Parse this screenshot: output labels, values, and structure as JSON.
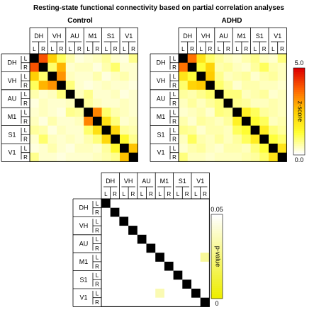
{
  "title": "Resting-state functional connectivity based on partial correlation analyses",
  "panels": {
    "control_title": "Control",
    "adhd_title": "ADHD"
  },
  "regions": [
    "DH",
    "VH",
    "AU",
    "M1",
    "S1",
    "V1"
  ],
  "hemispheres": [
    "L",
    "R"
  ],
  "colorbars": {
    "zscore": {
      "label": "z-score",
      "min_label": "0.0",
      "max_label": "5.0",
      "colors": [
        "#ffffff",
        "#ffff33",
        "#ffcc00",
        "#ff6600",
        "#dd0000"
      ]
    },
    "pvalue": {
      "label": "p-value",
      "min_label": "0",
      "max_label": "0.05",
      "colors": [
        "#eeee00",
        "#ffffff"
      ]
    }
  },
  "chart_data": [
    {
      "type": "heatmap",
      "title": "Control",
      "value_label": "z-score",
      "range": [
        0,
        5
      ],
      "labels": [
        "DH-L",
        "DH-R",
        "VH-L",
        "VH-R",
        "AU-L",
        "AU-R",
        "M1-L",
        "M1-R",
        "S1-L",
        "S1-R",
        "V1-L",
        "V1-R"
      ],
      "diagonal": "black",
      "matrix": [
        [
          null,
          4.0,
          2.4,
          1.0,
          0.5,
          0.2,
          0.3,
          0.4,
          0.6,
          0.3,
          0.2,
          0.7
        ],
        [
          4.0,
          null,
          0.9,
          2.8,
          0.3,
          0.4,
          0.4,
          0.2,
          0.5,
          0.9,
          0.3,
          0.3
        ],
        [
          2.4,
          0.9,
          null,
          3.2,
          0.4,
          0.3,
          0.3,
          0.5,
          0.2,
          0.4,
          0.5,
          0.3
        ],
        [
          1.0,
          2.8,
          3.2,
          null,
          0.8,
          0.3,
          0.2,
          0.3,
          0.4,
          0.3,
          0.3,
          0.2
        ],
        [
          0.5,
          0.3,
          0.4,
          0.8,
          null,
          0.4,
          0.7,
          0.3,
          0.3,
          0.4,
          0.2,
          0.3
        ],
        [
          0.2,
          0.4,
          0.3,
          0.3,
          0.4,
          null,
          0.6,
          0.4,
          0.3,
          0.3,
          0.4,
          0.3
        ],
        [
          0.3,
          0.4,
          0.3,
          0.2,
          0.7,
          0.6,
          null,
          3.4,
          0.9,
          0.5,
          0.4,
          0.3
        ],
        [
          0.4,
          0.2,
          0.5,
          0.3,
          0.3,
          0.4,
          3.4,
          null,
          2.0,
          0.8,
          0.3,
          0.4
        ],
        [
          0.6,
          0.5,
          0.2,
          0.4,
          0.3,
          0.3,
          0.9,
          2.0,
          null,
          2.2,
          0.6,
          0.5
        ],
        [
          0.3,
          0.9,
          0.4,
          0.3,
          0.4,
          0.3,
          0.5,
          0.8,
          2.2,
          null,
          1.4,
          0.7
        ],
        [
          0.2,
          0.3,
          0.5,
          0.3,
          0.2,
          0.4,
          0.4,
          0.3,
          0.6,
          1.4,
          null,
          2.6
        ],
        [
          0.7,
          0.3,
          0.3,
          0.2,
          0.3,
          0.3,
          0.3,
          0.4,
          0.5,
          0.7,
          2.6,
          null
        ]
      ]
    },
    {
      "type": "heatmap",
      "title": "ADHD",
      "value_label": "z-score",
      "range": [
        0,
        5
      ],
      "labels": [
        "DH-L",
        "DH-R",
        "VH-L",
        "VH-R",
        "AU-L",
        "AU-R",
        "M1-L",
        "M1-R",
        "S1-L",
        "S1-R",
        "V1-L",
        "V1-R"
      ],
      "diagonal": "black",
      "matrix": [
        [
          null,
          3.6,
          1.9,
          0.9,
          0.6,
          0.4,
          0.3,
          0.5,
          0.7,
          0.4,
          0.3,
          0.8
        ],
        [
          3.6,
          null,
          1.2,
          2.3,
          0.5,
          0.6,
          0.4,
          0.3,
          0.6,
          1.0,
          0.5,
          0.4
        ],
        [
          1.9,
          1.2,
          null,
          2.5,
          0.7,
          0.4,
          0.5,
          0.6,
          0.3,
          0.5,
          0.6,
          0.4
        ],
        [
          0.9,
          2.3,
          2.5,
          null,
          0.9,
          0.6,
          0.3,
          0.5,
          0.5,
          0.4,
          0.4,
          0.3
        ],
        [
          0.6,
          0.5,
          0.7,
          0.9,
          null,
          0.8,
          0.8,
          0.4,
          0.5,
          0.6,
          0.3,
          0.4
        ],
        [
          0.4,
          0.6,
          0.4,
          0.6,
          0.8,
          null,
          0.7,
          0.6,
          0.4,
          0.4,
          0.5,
          0.4
        ],
        [
          0.3,
          0.4,
          0.5,
          0.3,
          0.8,
          0.7,
          null,
          1.6,
          1.0,
          0.6,
          0.5,
          0.4
        ],
        [
          0.5,
          0.3,
          0.6,
          0.5,
          0.4,
          0.6,
          1.6,
          null,
          1.3,
          1.0,
          0.4,
          0.5
        ],
        [
          0.7,
          0.6,
          0.3,
          0.5,
          0.5,
          0.4,
          1.0,
          1.3,
          null,
          1.7,
          0.8,
          0.6
        ],
        [
          0.4,
          1.0,
          0.5,
          0.4,
          0.6,
          0.4,
          0.6,
          1.0,
          1.7,
          null,
          1.2,
          0.9
        ],
        [
          0.3,
          0.5,
          0.6,
          0.4,
          0.3,
          0.5,
          0.5,
          0.4,
          0.8,
          1.2,
          null,
          1.9
        ],
        [
          0.8,
          0.4,
          0.4,
          0.3,
          0.4,
          0.4,
          0.4,
          0.5,
          0.6,
          0.9,
          1.9,
          null
        ]
      ]
    },
    {
      "type": "heatmap",
      "title": "",
      "value_label": "p-value",
      "range": [
        0,
        0.05
      ],
      "labels": [
        "DH-L",
        "DH-R",
        "VH-L",
        "VH-R",
        "AU-L",
        "AU-R",
        "M1-L",
        "M1-R",
        "S1-L",
        "S1-R",
        "V1-L",
        "V1-R"
      ],
      "diagonal": "black",
      "significant_cells": [
        {
          "row": "V1-L",
          "col": "M1-L",
          "p": 0.035
        },
        {
          "row": "M1-L",
          "col": "V1-R",
          "p": 0.03
        }
      ]
    }
  ]
}
